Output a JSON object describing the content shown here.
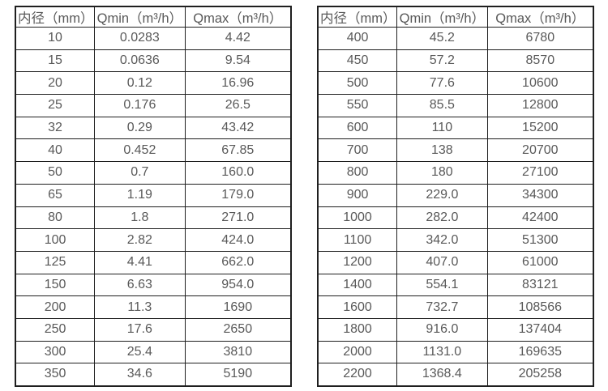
{
  "page": {
    "background_color": "#ffffff",
    "text_color": "#595959",
    "border_color": "#1f1f1f"
  },
  "columns": [
    "内径（mm）",
    "Qmin（m³/h）",
    "Qmax（m³/h）"
  ],
  "tables": [
    {
      "name": "flow-table-small-diameters",
      "rows": [
        [
          "10",
          "0.0283",
          "4.42"
        ],
        [
          "15",
          "0.0636",
          "9.54"
        ],
        [
          "20",
          "0.12",
          "16.96"
        ],
        [
          "25",
          "0.176",
          "26.5"
        ],
        [
          "32",
          "0.29",
          "43.42"
        ],
        [
          "40",
          "0.452",
          "67.85"
        ],
        [
          "50",
          "0.7",
          "160.0"
        ],
        [
          "65",
          "1.19",
          "179.0"
        ],
        [
          "80",
          "1.8",
          "271.0"
        ],
        [
          "100",
          "2.82",
          "424.0"
        ],
        [
          "125",
          "4.41",
          "662.0"
        ],
        [
          "150",
          "6.63",
          "954.0"
        ],
        [
          "200",
          "11.3",
          "1690"
        ],
        [
          "250",
          "17.6",
          "2650"
        ],
        [
          "300",
          "25.4",
          "3810"
        ],
        [
          "350",
          "34.6",
          "5190"
        ]
      ]
    },
    {
      "name": "flow-table-large-diameters",
      "rows": [
        [
          "400",
          "45.2",
          "6780"
        ],
        [
          "450",
          "57.2",
          "8570"
        ],
        [
          "500",
          "77.6",
          "10600"
        ],
        [
          "550",
          "85.5",
          "12800"
        ],
        [
          "600",
          "110",
          "15200"
        ],
        [
          "700",
          "138",
          "20700"
        ],
        [
          "800",
          "180",
          "27100"
        ],
        [
          "900",
          "229.0",
          "34300"
        ],
        [
          "1000",
          "282.0",
          "42400"
        ],
        [
          "1100",
          "342.0",
          "51300"
        ],
        [
          "1200",
          "407.0",
          "61000"
        ],
        [
          "1400",
          "554.1",
          "83121"
        ],
        [
          "1600",
          "732.7",
          "108566"
        ],
        [
          "1800",
          "916.0",
          "137404"
        ],
        [
          "2000",
          "1131.0",
          "169635"
        ],
        [
          "2200",
          "1368.4",
          "205258"
        ]
      ]
    }
  ],
  "chart_data": {
    "type": "table",
    "columns": [
      "内径（mm）",
      "Qmin（m³/h）",
      "Qmax（m³/h）"
    ],
    "rows": [
      [
        10,
        0.0283,
        4.42
      ],
      [
        15,
        0.0636,
        9.54
      ],
      [
        20,
        0.12,
        16.96
      ],
      [
        25,
        0.176,
        26.5
      ],
      [
        32,
        0.29,
        43.42
      ],
      [
        40,
        0.452,
        67.85
      ],
      [
        50,
        0.7,
        160.0
      ],
      [
        65,
        1.19,
        179.0
      ],
      [
        80,
        1.8,
        271.0
      ],
      [
        100,
        2.82,
        424.0
      ],
      [
        125,
        4.41,
        662.0
      ],
      [
        150,
        6.63,
        954.0
      ],
      [
        200,
        11.3,
        1690
      ],
      [
        250,
        17.6,
        2650
      ],
      [
        300,
        25.4,
        3810
      ],
      [
        350,
        34.6,
        5190
      ],
      [
        400,
        45.2,
        6780
      ],
      [
        450,
        57.2,
        8570
      ],
      [
        500,
        77.6,
        10600
      ],
      [
        550,
        85.5,
        12800
      ],
      [
        600,
        110,
        15200
      ],
      [
        700,
        138,
        20700
      ],
      [
        800,
        180,
        27100
      ],
      [
        900,
        229.0,
        34300
      ],
      [
        1000,
        282.0,
        42400
      ],
      [
        1100,
        342.0,
        51300
      ],
      [
        1200,
        407.0,
        61000
      ],
      [
        1400,
        554.1,
        83121
      ],
      [
        1600,
        732.7,
        108566
      ],
      [
        1800,
        916.0,
        137404
      ],
      [
        2000,
        1131.0,
        169635
      ],
      [
        2200,
        1368.4,
        205258
      ]
    ]
  }
}
